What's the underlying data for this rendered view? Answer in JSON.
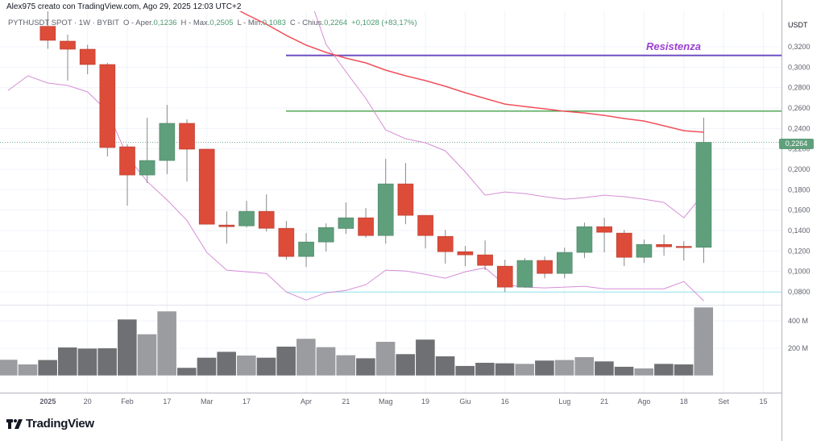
{
  "header": {
    "attribution": "Alex975 creato con TradingView.com, Ago 29, 2025 12:03 UTC+2"
  },
  "legend": {
    "symbol": "PYTHUSDT SPOT · 1W · BYBIT",
    "open_label": "O - Aper.",
    "open": "0,1236",
    "high_label": "H - Max.",
    "high": "0,2505",
    "low_label": "L - Min.",
    "low": "0,1083",
    "close_label": "C - Chius.",
    "close": "0,2264",
    "change": "+0,1028 (+83,17%)"
  },
  "price_axis": {
    "unit": "USDT",
    "ticks": [
      "0,3200",
      "0,3000",
      "0,2800",
      "0,2600",
      "0,2400",
      "0,2200",
      "0,2000",
      "0,1800",
      "0,1600",
      "0,1400",
      "0,1200",
      "0,1000",
      "0,0800"
    ],
    "tick_values": [
      0.32,
      0.3,
      0.28,
      0.26,
      0.24,
      0.22,
      0.2,
      0.18,
      0.16,
      0.14,
      0.12,
      0.1,
      0.08
    ],
    "last_price_label": "0,2264",
    "last_price": 0.2264
  },
  "volume_axis": {
    "ticks": [
      "400 M",
      "200 M"
    ],
    "tick_values": [
      400,
      200
    ]
  },
  "time_axis": {
    "labels": [
      {
        "text": "2025",
        "i": 2
      },
      {
        "text": "20",
        "i": 4
      },
      {
        "text": "Feb",
        "i": 6
      },
      {
        "text": "17",
        "i": 8
      },
      {
        "text": "Mar",
        "i": 10
      },
      {
        "text": "17",
        "i": 12
      },
      {
        "text": "Apr",
        "i": 15
      },
      {
        "text": "21",
        "i": 17
      },
      {
        "text": "Mag",
        "i": 19
      },
      {
        "text": "19",
        "i": 21
      },
      {
        "text": "Giu",
        "i": 23
      },
      {
        "text": "16",
        "i": 25
      },
      {
        "text": "Lug",
        "i": 28
      },
      {
        "text": "21",
        "i": 30
      },
      {
        "text": "Ago",
        "i": 32
      },
      {
        "text": "18",
        "i": 34
      },
      {
        "text": "Set",
        "i": 36
      },
      {
        "text": "15",
        "i": 38
      }
    ]
  },
  "annotations": {
    "resistance_label": "Resistenza",
    "resistance_price": 0.3115,
    "support_line_price": 0.257,
    "low_line_price": 0.0797
  },
  "colors": {
    "up": "#5f9f7c",
    "down": "#dd4b39",
    "volume_up": "#9b9ca0",
    "volume_down": "#6f7073",
    "ma": "#f0505a",
    "bands": "#d58ed6",
    "resistance": "#6f4fc4",
    "support": "#43a047",
    "low_line": "#b2ebf2"
  },
  "chart_data": {
    "type": "candlestick",
    "interval": "1W",
    "candles": [
      null,
      null,
      {
        "o": 0.34,
        "h": 0.36,
        "l": 0.318,
        "c": 0.3263
      },
      {
        "o": 0.3255,
        "h": 0.332,
        "l": 0.2868,
        "c": 0.3176
      },
      {
        "o": 0.3176,
        "h": 0.322,
        "l": 0.2931,
        "c": 0.3026
      },
      {
        "o": 0.3026,
        "h": 0.3042,
        "l": 0.2126,
        "c": 0.2213
      },
      {
        "o": 0.222,
        "h": 0.2245,
        "l": 0.1644,
        "c": 0.1944
      },
      {
        "o": 0.1944,
        "h": 0.2505,
        "l": 0.1865,
        "c": 0.2086
      },
      {
        "o": 0.2086,
        "h": 0.2631,
        "l": 0.1952,
        "c": 0.245
      },
      {
        "o": 0.245,
        "h": 0.2489,
        "l": 0.188,
        "c": 0.2197
      },
      {
        "o": 0.2197,
        "h": 0.22,
        "l": 0.146,
        "c": 0.1462
      },
      {
        "o": 0.1454,
        "h": 0.1588,
        "l": 0.1272,
        "c": 0.1438
      },
      {
        "o": 0.1446,
        "h": 0.1691,
        "l": 0.143,
        "c": 0.1588
      },
      {
        "o": 0.1588,
        "h": 0.1754,
        "l": 0.139,
        "c": 0.1422
      },
      {
        "o": 0.1422,
        "h": 0.1494,
        "l": 0.1114,
        "c": 0.1146
      },
      {
        "o": 0.1146,
        "h": 0.1375,
        "l": 0.1043,
        "c": 0.1288
      },
      {
        "o": 0.1288,
        "h": 0.147,
        "l": 0.1194,
        "c": 0.143
      },
      {
        "o": 0.142,
        "h": 0.1675,
        "l": 0.1367,
        "c": 0.1525
      },
      {
        "o": 0.1525,
        "h": 0.162,
        "l": 0.133,
        "c": 0.1351
      },
      {
        "o": 0.1351,
        "h": 0.2102,
        "l": 0.1272,
        "c": 0.1857
      },
      {
        "o": 0.1857,
        "h": 0.2062,
        "l": 0.1462,
        "c": 0.1549
      },
      {
        "o": 0.1549,
        "h": 0.1549,
        "l": 0.1225,
        "c": 0.1351
      },
      {
        "o": 0.1343,
        "h": 0.1407,
        "l": 0.1075,
        "c": 0.1193
      },
      {
        "o": 0.1193,
        "h": 0.1249,
        "l": 0.1051,
        "c": 0.1162
      },
      {
        "o": 0.1162,
        "h": 0.1304,
        "l": 0.1012,
        "c": 0.1059
      },
      {
        "o": 0.1051,
        "h": 0.1114,
        "l": 0.0798,
        "c": 0.0846
      },
      {
        "o": 0.0846,
        "h": 0.113,
        "l": 0.084,
        "c": 0.1107
      },
      {
        "o": 0.1107,
        "h": 0.1146,
        "l": 0.0933,
        "c": 0.098
      },
      {
        "o": 0.098,
        "h": 0.1233,
        "l": 0.0933,
        "c": 0.1186
      },
      {
        "o": 0.1186,
        "h": 0.1478,
        "l": 0.113,
        "c": 0.1438
      },
      {
        "o": 0.1438,
        "h": 0.1525,
        "l": 0.1186,
        "c": 0.1383
      },
      {
        "o": 0.1375,
        "h": 0.1407,
        "l": 0.1051,
        "c": 0.1138
      },
      {
        "o": 0.1138,
        "h": 0.1312,
        "l": 0.1083,
        "c": 0.1264
      },
      {
        "o": 0.1264,
        "h": 0.1359,
        "l": 0.1154,
        "c": 0.1241
      },
      {
        "o": 0.1245,
        "h": 0.1296,
        "l": 0.1107,
        "c": 0.1236
      },
      {
        "o": 0.1236,
        "h": 0.2505,
        "l": 0.1083,
        "c": 0.2264
      }
    ],
    "volume_millions": [
      118,
      84,
      116,
      208,
      200,
      202,
      412,
      304,
      471,
      59,
      133,
      176,
      149,
      133,
      214,
      271,
      210,
      151,
      129,
      249,
      159,
      265,
      143,
      73,
      96,
      92,
      88,
      112,
      116,
      137,
      106,
      67,
      55,
      88,
      84,
      500
    ],
    "volume_up": [
      true,
      true,
      false,
      false,
      false,
      false,
      false,
      true,
      true,
      false,
      false,
      false,
      true,
      false,
      false,
      true,
      true,
      true,
      false,
      true,
      false,
      false,
      false,
      false,
      false,
      false,
      true,
      false,
      true,
      true,
      false,
      false,
      true,
      false,
      false,
      true
    ],
    "moving_average": [
      null,
      null,
      null,
      null,
      null,
      null,
      null,
      null,
      null,
      null,
      null,
      0.3619,
      0.3516,
      0.3421,
      0.3311,
      0.3216,
      0.3145,
      0.3089,
      0.3042,
      0.2971,
      0.2916,
      0.2868,
      0.2813,
      0.275,
      0.2694,
      0.2639,
      0.2615,
      0.2592,
      0.2568,
      0.2552,
      0.2528,
      0.2497,
      0.2473,
      0.2426,
      0.2378,
      0.2363
    ],
    "band_a": [
      0.2773,
      0.2916,
      0.2845,
      0.2821,
      0.2758,
      0.2568,
      0.2126,
      0.188,
      0.17,
      0.15,
      0.1186,
      0.1012,
      0.0996,
      0.098,
      0.0798,
      0.0719,
      0.079,
      0.0814,
      0.087,
      0.1012,
      0.1004,
      0.0972,
      0.0933,
      0.0996,
      0.1035,
      0.087,
      0.0846,
      0.0838,
      0.0846,
      0.0854,
      0.083,
      0.083,
      0.083,
      0.083,
      0.0901,
      0.0712
    ],
    "band_b": [
      null,
      null,
      null,
      null,
      null,
      null,
      null,
      null,
      null,
      null,
      null,
      null,
      null,
      null,
      null,
      0.3777,
      0.3224,
      0.2955,
      0.2694,
      0.2386,
      0.2299,
      0.226,
      0.2181,
      0.1976,
      0.1746,
      0.1778,
      0.1762,
      0.1731,
      0.1707,
      0.1723,
      0.1746,
      0.1731,
      0.1707,
      0.1675,
      0.1525,
      0.1762
    ],
    "ylim": [
      0.0697,
      0.3743
    ],
    "grid": true
  },
  "branding": {
    "logo_text": "TradingView"
  }
}
